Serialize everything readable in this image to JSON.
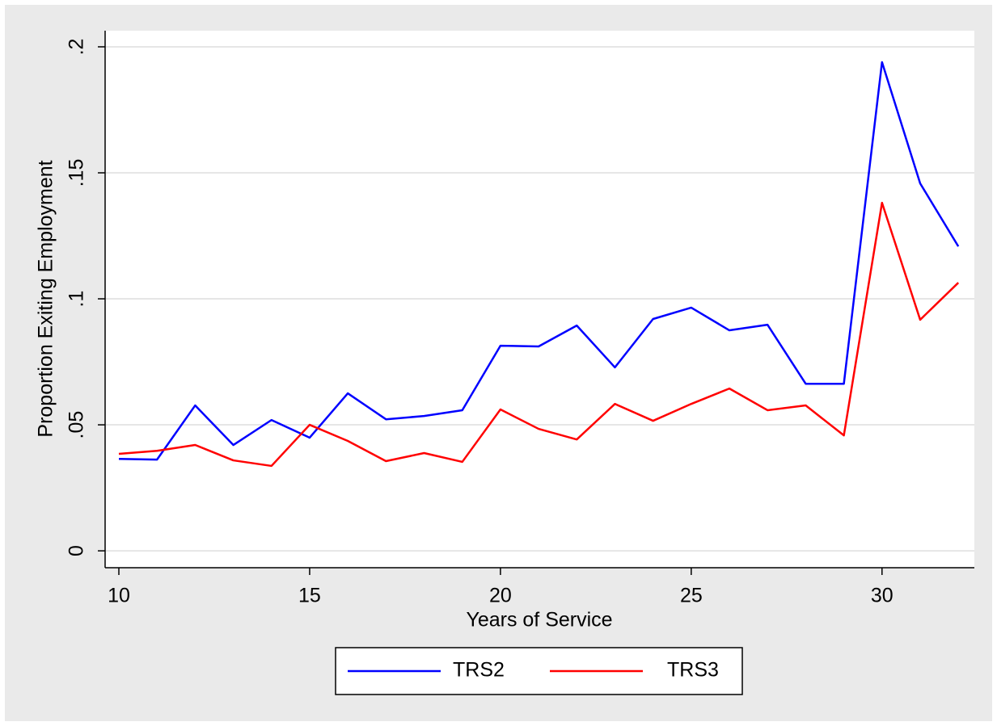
{
  "chart_data": {
    "type": "line",
    "x_label": "Years of Service",
    "y_label": "Proportion Exiting Employment",
    "x": [
      10,
      11,
      12,
      13,
      14,
      15,
      16,
      17,
      18,
      19,
      20,
      21,
      22,
      23,
      24,
      25,
      26,
      27,
      28,
      29,
      30,
      31,
      32
    ],
    "series": [
      {
        "name": "TRS2",
        "color": "#0000ff",
        "values": [
          0.0365,
          0.0362,
          0.0577,
          0.042,
          0.0519,
          0.0449,
          0.0625,
          0.0522,
          0.0535,
          0.0558,
          0.0814,
          0.0811,
          0.0894,
          0.0728,
          0.092,
          0.0965,
          0.0875,
          0.0897,
          0.0663,
          0.0663,
          0.1939,
          0.1458,
          0.1208
        ]
      },
      {
        "name": "TRS3",
        "color": "#ff0000",
        "values": [
          0.0385,
          0.0397,
          0.042,
          0.0359,
          0.0337,
          0.05,
          0.0436,
          0.0356,
          0.0388,
          0.0353,
          0.0561,
          0.0484,
          0.0442,
          0.0583,
          0.0516,
          0.0583,
          0.0644,
          0.0558,
          0.0577,
          0.0458,
          0.1381,
          0.0917,
          0.1064
        ]
      }
    ],
    "xlim": [
      9.64,
      32.42
    ],
    "xticks": [
      10,
      15,
      20,
      25,
      30
    ],
    "ylim": [
      -0.0067,
      0.2064
    ],
    "yticks": [
      0,
      {
        "value": 0.05,
        "label": ".05"
      },
      {
        "value": 0.1,
        "label": ".1"
      },
      {
        "value": 0.15,
        "label": ".15"
      },
      {
        "value": 0.2,
        "label": ".2"
      }
    ],
    "grid": true,
    "legend": "bottom"
  }
}
